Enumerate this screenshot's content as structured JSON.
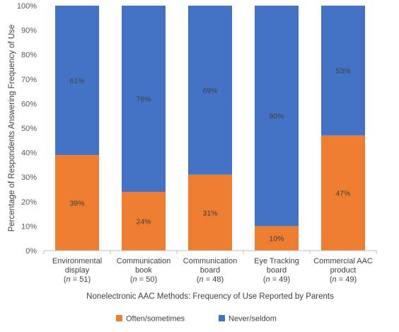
{
  "chart_data": {
    "type": "bar",
    "stacked": true,
    "percent_stacked": true,
    "xlabel": "Nonelectronic AAC Methods: Frequency of Use Reported by Parents",
    "ylabel": "Percentage of Respondents Answering Frequency of Use",
    "ylim": [
      0,
      100
    ],
    "yticks": [
      "0%",
      "10%",
      "20%",
      "30%",
      "40%",
      "50%",
      "60%",
      "70%",
      "80%",
      "90%",
      "100%"
    ],
    "categories": [
      {
        "line1": "Environmental",
        "line2": "display",
        "n_prefix": "(",
        "n_italic": "n",
        "n_suffix": " = 51)"
      },
      {
        "line1": "Communication",
        "line2": "book",
        "n_prefix": "(",
        "n_italic": "n",
        "n_suffix": " = 50)"
      },
      {
        "line1": "Communication",
        "line2": "board",
        "n_prefix": "(",
        "n_italic": "n",
        "n_suffix": " = 48)"
      },
      {
        "line1": "Eye Tracking",
        "line2": "board",
        "n_prefix": "(",
        "n_italic": "n",
        "n_suffix": " = 49)"
      },
      {
        "line1": "Commercial AAC",
        "line2": "product",
        "n_prefix": "(",
        "n_italic": "n",
        "n_suffix": " = 49)"
      }
    ],
    "series": [
      {
        "name": "Often/sometimes",
        "color": "#ED7D31",
        "values": [
          39,
          24,
          31,
          10,
          47
        ],
        "labels": [
          "39%",
          "24%",
          "31%",
          "10%",
          "47%"
        ]
      },
      {
        "name": "Never/seldom",
        "color": "#4472C4",
        "values": [
          61,
          76,
          69,
          90,
          53
        ],
        "labels": [
          "61%",
          "76%",
          "69%",
          "90%",
          "53%"
        ]
      }
    ],
    "legend_position": "bottom",
    "grid": false
  }
}
